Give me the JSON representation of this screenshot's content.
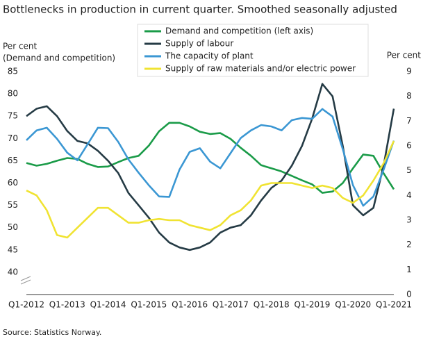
{
  "chart_data": {
    "type": "line",
    "title": "Bottlenecks in production in current quarter. Smoothed seasonally adjusted",
    "y_label": "Per cent",
    "y_label_sub": "(Demand  and competition)",
    "y2_label": "Per cent",
    "source": "Source: Statistics Norway.",
    "categories": [
      "Q1-2012",
      null,
      null,
      null,
      "Q1-2013",
      null,
      null,
      null,
      "Q1-2014",
      null,
      null,
      null,
      "Q1-2015",
      null,
      null,
      null,
      "Q1-2016",
      null,
      null,
      null,
      "Q1-2017",
      null,
      null,
      null,
      "Q1-2018",
      null,
      null,
      null,
      "Q1-2019",
      null,
      null,
      null,
      "Q1-2020",
      null,
      null,
      null,
      "Q1-2021"
    ],
    "ylim": [
      35,
      85
    ],
    "yticks": [
      40,
      45,
      50,
      55,
      60,
      65,
      70,
      75,
      80,
      85
    ],
    "y2lim": [
      0,
      9
    ],
    "y2ticks": [
      0,
      1,
      2,
      3,
      4,
      5,
      6,
      7,
      8,
      9
    ],
    "series": [
      {
        "name": "Demand and competition (left axis)",
        "color": "#1a9b48",
        "axis": "y",
        "values": [
          64.5,
          63.9,
          64.3,
          65,
          65.6,
          65.4,
          64.3,
          63.6,
          63.7,
          64.7,
          65.6,
          66.1,
          68.4,
          71.6,
          73.5,
          73.5,
          72.7,
          71.5,
          71.0,
          71.2,
          69.9,
          67.9,
          66.1,
          64,
          63.3,
          62.6,
          61.6,
          60.6,
          59.7,
          57.8,
          58.1,
          60,
          63.3,
          66.4,
          66.1,
          62.2,
          58.6
        ]
      },
      {
        "name": "Supply of labour",
        "color": "#253b45",
        "axis": "y2",
        "values": [
          7.2,
          7.5,
          7.6,
          7.2,
          6.6,
          6.2,
          6.1,
          5.8,
          5.4,
          4.9,
          4.1,
          3.6,
          3.1,
          2.5,
          2.1,
          1.9,
          1.8,
          1.9,
          2.1,
          2.5,
          2.7,
          2.8,
          3.2,
          3.8,
          4.3,
          4.6,
          5.2,
          6.0,
          7.1,
          8.5,
          8.0,
          6.0,
          3.6,
          3.2,
          3.5,
          5.2,
          7.5
        ]
      },
      {
        "name": "The capacity of plant",
        "color": "#3b97d3",
        "axis": "y",
        "values": [
          69.6,
          71.8,
          72.4,
          69.9,
          66.8,
          65.1,
          68.7,
          72.4,
          72.3,
          69.2,
          65.3,
          62.3,
          59.5,
          57.0,
          56.9,
          63,
          67,
          67.8,
          64.8,
          63.3,
          66.7,
          70.1,
          71.8,
          73,
          72.7,
          71.8,
          74.1,
          74.6,
          74.4,
          76.6,
          74.9,
          67.6,
          59.5,
          54.9,
          57,
          63,
          69.5
        ]
      },
      {
        "name": "Supply of raw materials and/or electric power",
        "color": "#f0e332",
        "axis": "y2",
        "values": [
          4.2,
          4.0,
          3.4,
          2.4,
          2.3,
          2.7,
          3.1,
          3.5,
          3.5,
          3.2,
          2.9,
          2.9,
          3.0,
          3.05,
          3.0,
          3.0,
          2.8,
          2.7,
          2.6,
          2.8,
          3.2,
          3.4,
          3.8,
          4.4,
          4.5,
          4.5,
          4.5,
          4.4,
          4.3,
          4.4,
          4.3,
          3.9,
          3.7,
          4.0,
          4.6,
          5.3,
          6.2
        ]
      }
    ]
  }
}
